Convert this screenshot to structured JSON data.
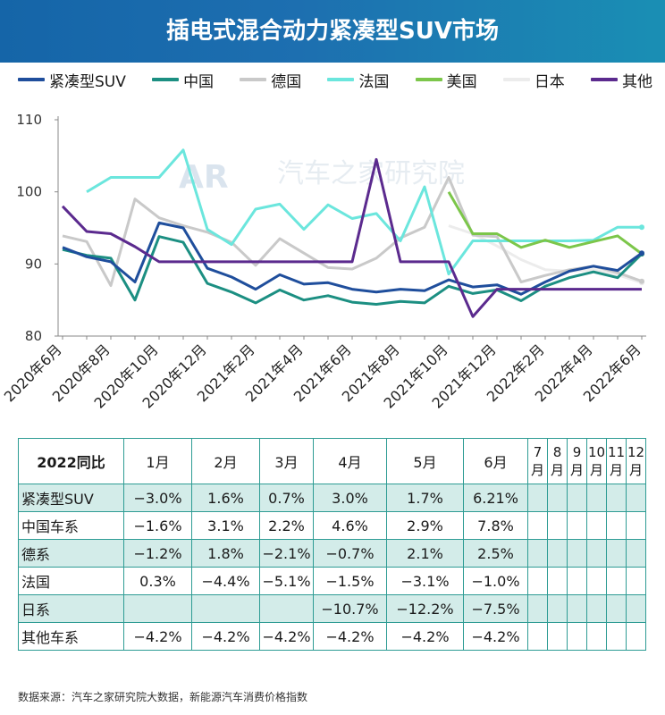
{
  "title": "插电式混合动力紧凑型SUV市场",
  "watermark": "汽车之家研究院",
  "chart_data": {
    "type": "line",
    "x": [
      "2020年6月",
      "2020年7月",
      "2020年8月",
      "2020年9月",
      "2020年10月",
      "2020年11月",
      "2020年12月",
      "2021年1月",
      "2021年2月",
      "2021年3月",
      "2021年4月",
      "2021年5月",
      "2021年6月",
      "2021年7月",
      "2021年8月",
      "2021年9月",
      "2021年10月",
      "2021年11月",
      "2021年12月",
      "2022年1月",
      "2022年2月",
      "2022年3月",
      "2022年4月",
      "2022年5月",
      "2022年6月"
    ],
    "x_tick_labels": [
      "2020年6月",
      "2020年8月",
      "2020年10月",
      "2020年12月",
      "2021年2月",
      "2021年4月",
      "2021年6月",
      "2021年8月",
      "2021年10月",
      "2021年12月",
      "2022年2月",
      "2022年4月",
      "2022年6月"
    ],
    "ylim": [
      80,
      110
    ],
    "y_ticks": [
      80,
      90,
      100,
      110
    ],
    "grid": false,
    "legend": "top",
    "series": [
      {
        "name": "紧凑型SUV",
        "color": "#1f4e9c",
        "values": [
          92.3,
          91.0,
          90.3,
          87.5,
          95.7,
          95.0,
          89.4,
          88.2,
          86.5,
          88.5,
          87.2,
          87.4,
          86.5,
          86.1,
          86.5,
          86.3,
          87.8,
          86.8,
          87.1,
          85.8,
          87.5,
          89.0,
          89.7,
          89.1,
          91.5
        ]
      },
      {
        "name": "中国",
        "color": "#1c8f82",
        "values": [
          92.0,
          91.2,
          90.8,
          85.0,
          93.8,
          93.0,
          87.3,
          86.1,
          84.6,
          86.4,
          85.0,
          85.6,
          84.7,
          84.4,
          84.8,
          84.6,
          86.9,
          85.9,
          86.4,
          84.9,
          86.9,
          88.1,
          88.9,
          88.1,
          91.4
        ]
      },
      {
        "name": "德国",
        "color": "#c9c9c9",
        "values": [
          93.9,
          93.1,
          87.0,
          99.0,
          96.4,
          95.3,
          94.4,
          93.0,
          89.8,
          93.5,
          91.5,
          89.5,
          89.3,
          90.8,
          93.6,
          95.1,
          102.0,
          94.0,
          93.8,
          87.5,
          88.4,
          89.2,
          89.7,
          88.8,
          87.6
        ]
      },
      {
        "name": "法国",
        "color": "#6be6dd",
        "values": [
          null,
          100.0,
          102.0,
          102.0,
          102.0,
          105.8,
          94.8,
          92.7,
          97.6,
          98.3,
          94.8,
          98.2,
          96.3,
          97.0,
          93.2,
          100.7,
          88.6,
          93.2,
          93.2,
          93.2,
          93.2,
          93.2,
          93.3,
          95.1,
          95.1
        ]
      },
      {
        "name": "美国",
        "color": "#7cc64a",
        "values": [
          null,
          null,
          null,
          null,
          null,
          null,
          null,
          null,
          null,
          null,
          null,
          null,
          null,
          null,
          null,
          null,
          100.0,
          94.2,
          94.2,
          92.3,
          93.3,
          92.3,
          93.1,
          93.9,
          91.4
        ]
      },
      {
        "name": "日本",
        "color": "#ececec",
        "values": [
          null,
          null,
          null,
          null,
          null,
          null,
          null,
          null,
          null,
          null,
          null,
          null,
          null,
          null,
          null,
          null,
          95.3,
          94.2,
          92.5,
          90.6,
          89.2,
          89.0,
          89.2,
          88.5,
          87.4
        ]
      },
      {
        "name": "其他",
        "color": "#5b2a8e",
        "values": [
          98.0,
          94.5,
          94.2,
          92.4,
          90.3,
          90.3,
          90.3,
          90.3,
          90.3,
          90.3,
          90.3,
          90.3,
          90.3,
          104.5,
          90.3,
          90.3,
          90.3,
          82.7,
          86.5,
          86.5,
          86.5,
          86.5,
          86.5,
          86.5,
          86.5
        ]
      }
    ]
  },
  "table": {
    "corner": "2022同比",
    "months": [
      "1月",
      "2月",
      "3月",
      "4月",
      "5月",
      "6月",
      "7月",
      "8月",
      "9月",
      "10月",
      "11月",
      "12月"
    ],
    "rows": [
      {
        "label": "紧凑型SUV",
        "values": [
          "−3.0%",
          "1.6%",
          "0.7%",
          "3.0%",
          "1.7%",
          "6.21%",
          "",
          "",
          "",
          "",
          "",
          ""
        ]
      },
      {
        "label": "中国车系",
        "values": [
          "−1.6%",
          "3.1%",
          "2.2%",
          "4.6%",
          "2.9%",
          "7.8%",
          "",
          "",
          "",
          "",
          "",
          ""
        ]
      },
      {
        "label": "德系",
        "values": [
          "−1.2%",
          "1.8%",
          "−2.1%",
          "−0.7%",
          "2.1%",
          "2.5%",
          "",
          "",
          "",
          "",
          "",
          ""
        ]
      },
      {
        "label": "法国",
        "values": [
          "0.3%",
          "−4.4%",
          "−5.1%",
          "−1.5%",
          "−3.1%",
          "−1.0%",
          "",
          "",
          "",
          "",
          "",
          ""
        ]
      },
      {
        "label": "日系",
        "values": [
          "",
          "",
          "",
          "−10.7%",
          "−12.2%",
          "−7.5%",
          "",
          "",
          "",
          "",
          "",
          ""
        ]
      },
      {
        "label": "其他车系",
        "values": [
          "−4.2%",
          "−4.2%",
          "−4.2%",
          "−4.2%",
          "−4.2%",
          "−4.2%",
          "",
          "",
          "",
          "",
          "",
          ""
        ]
      }
    ]
  },
  "footnote": "数据来源：汽车之家研究院大数据，新能源汽车消费价格指数"
}
